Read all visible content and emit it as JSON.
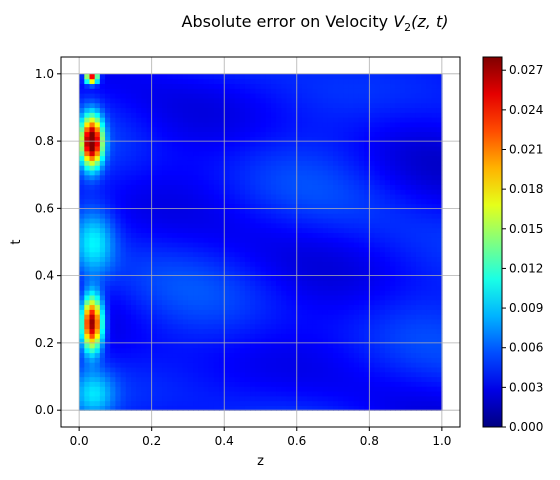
{
  "chart_data": {
    "type": "heatmap",
    "title": "Absolute error on Velocity V2(z, t)",
    "title_parts": {
      "prefix": "Absolute error on Velocity ",
      "var": "V",
      "sub": "2",
      "args": "(z, t)"
    },
    "xlabel": "z",
    "ylabel": "t",
    "xlim": [
      -0.05,
      1.05
    ],
    "ylim": [
      -0.05,
      1.05
    ],
    "xticks": [
      "0.0",
      "0.2",
      "0.4",
      "0.6",
      "0.8",
      "1.0"
    ],
    "yticks": [
      "0.0",
      "0.2",
      "0.4",
      "0.6",
      "0.8",
      "1.0"
    ],
    "grid": true,
    "colormap": "jet",
    "colorbar": {
      "range": [
        0.0,
        0.028
      ],
      "ticks": [
        "0.000",
        "0.003",
        "0.006",
        "0.009",
        "0.012",
        "0.015",
        "0.018",
        "0.021",
        "0.024",
        "0.027"
      ]
    },
    "background_error": 0.004,
    "hotspots": [
      {
        "z": 0.035,
        "t": 0.8,
        "peak": 0.026,
        "sz": 0.02,
        "st": 0.05
      },
      {
        "z": 0.035,
        "t": 0.26,
        "peak": 0.025,
        "sz": 0.02,
        "st": 0.055
      },
      {
        "z": 0.035,
        "t": 0.99,
        "peak": 0.022,
        "sz": 0.012,
        "st": 0.012
      },
      {
        "z": 0.04,
        "t": 0.5,
        "peak": 0.006,
        "sz": 0.04,
        "st": 0.07
      },
      {
        "z": 0.04,
        "t": 0.05,
        "peak": 0.005,
        "sz": 0.04,
        "st": 0.05
      }
    ]
  }
}
